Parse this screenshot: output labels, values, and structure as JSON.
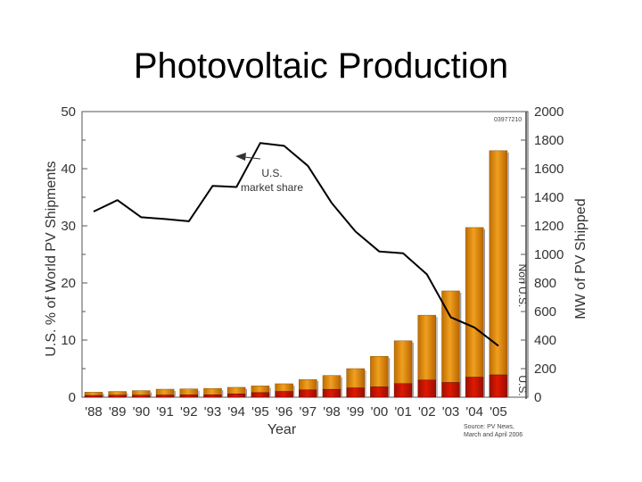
{
  "slide": {
    "title": "Photovoltaic Production"
  },
  "chart_data": {
    "type": "bar",
    "categories": [
      "'88",
      "'89",
      "'90",
      "'91",
      "'92",
      "'93",
      "'94",
      "'95",
      "'96",
      "'97",
      "'98",
      "'99",
      "'00",
      "'01",
      "'02",
      "'03",
      "'04",
      "'05"
    ],
    "series": [
      {
        "name": "U.S.",
        "role": "bar-stack-bottom",
        "axis": "right",
        "color": "#cc1100",
        "values": [
          12,
          14,
          14,
          15,
          16,
          17,
          23,
          32,
          40,
          51,
          55,
          65,
          72,
          95,
          120,
          103,
          140,
          156
        ]
      },
      {
        "name": "Non U.S.",
        "role": "bar-stack-top",
        "axis": "right",
        "color": "#e08a00",
        "values": [
          23,
          26,
          32,
          41,
          42,
          44,
          46,
          47,
          54,
          73,
          97,
          135,
          214,
          300,
          454,
          641,
          1048,
          1570
        ]
      },
      {
        "name": "U.S. market share",
        "role": "line",
        "axis": "left",
        "color": "#000000",
        "values": [
          32.5,
          34.5,
          31.5,
          31.2,
          30.8,
          37.0,
          36.8,
          44.5,
          44.0,
          40.5,
          34.0,
          29.0,
          25.5,
          25.2,
          21.5,
          14.0,
          12.2,
          9.0
        ]
      }
    ],
    "xlabel": "Year",
    "ylabel_left": "U.S. % of World PV Shipments",
    "ylabel_right": "MW of PV Shipped",
    "ylim_left": [
      0,
      50
    ],
    "ylim_right": [
      0,
      2000
    ],
    "yticks_left": [
      "0",
      "10",
      "20",
      "30",
      "40",
      "50"
    ],
    "yticks_right": [
      "0",
      "200",
      "400",
      "600",
      "800",
      "1000",
      "1200",
      "1400",
      "1600",
      "1800",
      "2000"
    ],
    "annotations": {
      "market_share_line1": "U.S.",
      "market_share_line2": "market share",
      "nonus_label": "Non U.S.",
      "us_label": "U.S.",
      "figure_id": "03977210"
    },
    "source": {
      "line1": "Source: PV News,",
      "line2": "March and April 2006"
    }
  }
}
